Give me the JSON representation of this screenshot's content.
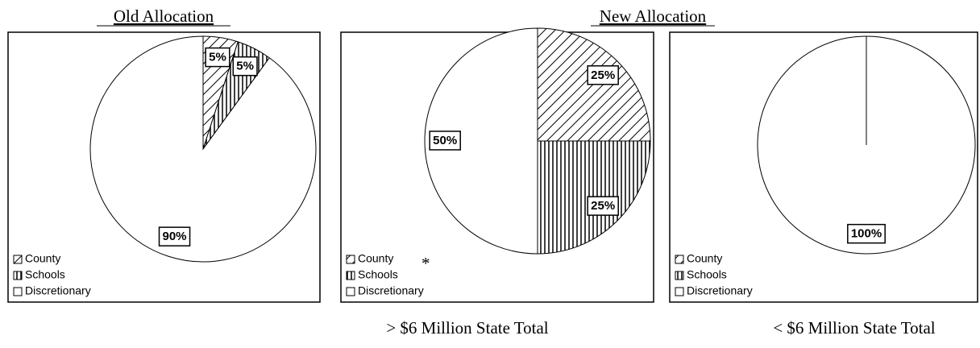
{
  "headings": [
    "Old Allocation",
    "New Allocation"
  ],
  "chart_data": [
    {
      "type": "pie",
      "categories": [
        "County",
        "Schools",
        "Discretionary"
      ],
      "values": [
        5,
        5,
        90
      ],
      "value_labels": [
        "5%",
        "5%",
        "90%"
      ],
      "patterns": [
        "diagonal",
        "vertical",
        "none"
      ],
      "legend": "bottom-left"
    },
    {
      "type": "pie",
      "categories": [
        "County",
        "Schools",
        "Discretionary"
      ],
      "values": [
        25,
        25,
        50
      ],
      "value_labels": [
        "25%",
        "25%",
        "50%"
      ],
      "patterns": [
        "diagonal",
        "vertical",
        "none"
      ],
      "legend": "bottom-left",
      "annotation": "*",
      "caption": "> $6 Million State Total"
    },
    {
      "type": "pie",
      "categories": [
        "County",
        "Schools",
        "Discretionary"
      ],
      "values": [
        0,
        0,
        100
      ],
      "value_labels": [
        null,
        null,
        "100%"
      ],
      "patterns": [
        "diagonal",
        "vertical",
        "none"
      ],
      "legend": "bottom-left",
      "caption": "< $6 Million State Total"
    }
  ]
}
